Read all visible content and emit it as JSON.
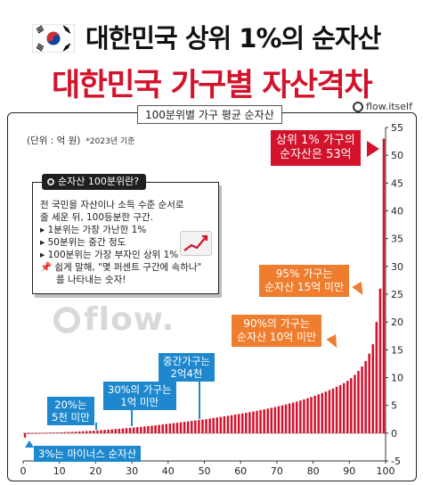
{
  "header": {
    "title_main": "대한민국 상위 1%의 순자산",
    "title_sub": "대한민국 가구별 자산격차"
  },
  "brand": {
    "handle": "flow.itself",
    "watermark": "flow."
  },
  "colors": {
    "bar": "#d3122b",
    "accent_red": "#d3122b",
    "orange": "#ee7d2e",
    "blue": "#1e88cf"
  },
  "info_box": {
    "title": "순자산 100분위란?",
    "lines": [
      "전 국민을 자산이나 소득 수준 순서로",
      "줄 세운 뒤, 100등분한 구간.",
      "▸ 1분위는 가장 가난한 1%",
      "▸ 50분위는 중간 정도",
      "▸ 100분위는 가장 부자인 상위 1%",
      "쉽게 말해, \"몇 퍼센트 구간에 속하나\"",
      "를 나타내는 숫자!"
    ]
  },
  "callouts": {
    "top1": [
      "상위 1% 가구의",
      "순자산은 53억"
    ],
    "p95": [
      "95% 가구는",
      "순자산 15억 미만"
    ],
    "p90": [
      "90%의 가구는",
      "순자산 10억 미만"
    ],
    "median": [
      "중간가구는",
      "2억4천"
    ],
    "p30": [
      "30%의 가구는",
      "1억 미만"
    ],
    "p20": [
      "20%는",
      "5천 미만"
    ],
    "p3": "3%는 마이너스 순자산"
  },
  "chart_data": {
    "type": "bar",
    "title": "100분위별 가구 평균 순자산",
    "unit_label": "(단위 : 억 원)",
    "reference": "*2023년 기준",
    "x": [
      1,
      2,
      3,
      4,
      5,
      6,
      7,
      8,
      9,
      10,
      11,
      12,
      13,
      14,
      15,
      16,
      17,
      18,
      19,
      20,
      21,
      22,
      23,
      24,
      25,
      26,
      27,
      28,
      29,
      30,
      31,
      32,
      33,
      34,
      35,
      36,
      37,
      38,
      39,
      40,
      41,
      42,
      43,
      44,
      45,
      46,
      47,
      48,
      49,
      50,
      51,
      52,
      53,
      54,
      55,
      56,
      57,
      58,
      59,
      60,
      61,
      62,
      63,
      64,
      65,
      66,
      67,
      68,
      69,
      70,
      71,
      72,
      73,
      74,
      75,
      76,
      77,
      78,
      79,
      80,
      81,
      82,
      83,
      84,
      85,
      86,
      87,
      88,
      89,
      90,
      91,
      92,
      93,
      94,
      95,
      96,
      97,
      98,
      99,
      100
    ],
    "values": [
      -0.8,
      -0.15,
      -0.05,
      0.01,
      0.02,
      0.04,
      0.06,
      0.08,
      0.1,
      0.12,
      0.15,
      0.18,
      0.2,
      0.23,
      0.26,
      0.3,
      0.33,
      0.37,
      0.41,
      0.45,
      0.5,
      0.54,
      0.59,
      0.63,
      0.68,
      0.73,
      0.78,
      0.84,
      0.9,
      0.96,
      1.02,
      1.08,
      1.14,
      1.2,
      1.27,
      1.34,
      1.41,
      1.48,
      1.56,
      1.64,
      1.72,
      1.8,
      1.88,
      1.96,
      2.04,
      2.12,
      2.2,
      2.28,
      2.36,
      2.44,
      2.52,
      2.62,
      2.72,
      2.82,
      2.92,
      3.02,
      3.12,
      3.22,
      3.33,
      3.44,
      3.55,
      3.66,
      3.78,
      3.9,
      4.02,
      4.15,
      4.28,
      4.42,
      4.56,
      4.7,
      4.85,
      5.0,
      5.16,
      5.33,
      5.5,
      5.68,
      5.87,
      6.07,
      6.28,
      6.5,
      6.73,
      6.97,
      7.22,
      7.48,
      7.75,
      8.03,
      8.33,
      8.65,
      9.0,
      9.4,
      9.9,
      10.5,
      11.2,
      12.0,
      13.0,
      14.3,
      16.0,
      20.0,
      26.0,
      53.0
    ],
    "xticks": [
      0,
      10,
      20,
      30,
      40,
      50,
      60,
      70,
      80,
      90,
      100
    ],
    "yticks": [
      -5,
      0,
      5,
      10,
      15,
      20,
      25,
      30,
      35,
      40,
      45,
      50,
      55
    ],
    "xlim": [
      0,
      100
    ],
    "ylim": [
      -5,
      55
    ],
    "grid": false,
    "ylabel_position": "right"
  }
}
